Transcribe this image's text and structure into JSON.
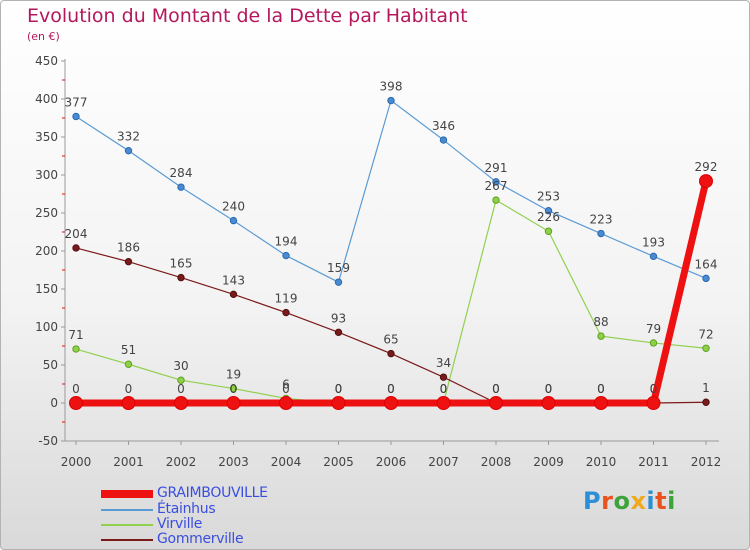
{
  "title": "Evolution du Montant de la Dette par Habitant",
  "subtitle": "(en €)",
  "brand": "Proxiti",
  "chart_data": {
    "type": "line",
    "x": [
      "2000",
      "2001",
      "2002",
      "2003",
      "2004",
      "2005",
      "2006",
      "2007",
      "2008",
      "2009",
      "2010",
      "2011",
      "2012"
    ],
    "ylim": [
      -50,
      450
    ],
    "yticks": [
      -50,
      0,
      50,
      100,
      150,
      200,
      250,
      300,
      350,
      400,
      450
    ],
    "grid": false,
    "legend_position": "bottom-left",
    "series": [
      {
        "name": "GRAIMBOUVILLE",
        "color": "#ee1111",
        "values": [
          0,
          0,
          0,
          0,
          0,
          0,
          0,
          0,
          0,
          0,
          0,
          0,
          292
        ],
        "labels": [
          "0",
          "0",
          "0",
          "0",
          "0",
          "0",
          "0",
          "0",
          "0",
          "0",
          "0",
          "0",
          "292"
        ]
      },
      {
        "name": "Étainhus",
        "color": "#5b9bd5",
        "values": [
          377,
          332,
          284,
          240,
          194,
          159,
          398,
          346,
          291,
          253,
          223,
          193,
          164
        ],
        "labels": [
          "377",
          "332",
          "284",
          "240",
          "194",
          "159",
          "398",
          "346",
          "291",
          "253",
          "223",
          "193",
          "164"
        ]
      },
      {
        "name": "Virville",
        "color": "#92d050",
        "values": [
          71,
          51,
          30,
          19,
          6,
          0,
          0,
          0,
          267,
          226,
          88,
          79,
          72
        ],
        "labels": [
          "71",
          "51",
          "30",
          "19",
          "6",
          "0",
          "0",
          "0",
          "267",
          "226",
          "88",
          "79",
          "72"
        ]
      },
      {
        "name": "Gommerville",
        "color": "#7b1a1a",
        "values": [
          204,
          186,
          165,
          143,
          119,
          93,
          65,
          34,
          0,
          0,
          0,
          0,
          1
        ],
        "labels": [
          "204",
          "186",
          "165",
          "143",
          "119",
          "93",
          "65",
          "34",
          "0",
          "0",
          "0",
          "0",
          "1"
        ]
      }
    ]
  }
}
